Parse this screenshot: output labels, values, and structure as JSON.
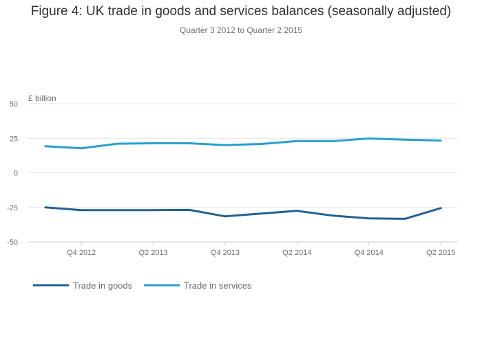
{
  "chart_data": {
    "type": "line",
    "title": "Figure 4: UK trade in goods and services balances (seasonally adjusted)",
    "subtitle": "Quarter 3 2012 to Quarter 2 2015",
    "ylabel": "£ billion",
    "xlabel": "",
    "ylim": [
      -50,
      50
    ],
    "yticks": [
      50,
      25,
      0,
      -25,
      -50
    ],
    "x": [
      "Q3 2012",
      "Q4 2012",
      "Q1 2013",
      "Q2 2013",
      "Q3 2013",
      "Q4 2013",
      "Q1 2014",
      "Q2 2014",
      "Q3 2014",
      "Q4 2014",
      "Q1 2015",
      "Q2 2015"
    ],
    "xtick_labels": [
      "Q4 2012",
      "Q2 2013",
      "Q4 2013",
      "Q2 2014",
      "Q4 2014",
      "Q2 2015"
    ],
    "series": [
      {
        "name": "Trade in goods",
        "color": "#206095",
        "values": [
          -25,
          -27,
          -27,
          -27,
          -26.8,
          -31.5,
          -29.5,
          -27.5,
          -31,
          -33,
          -33.3,
          -25.5
        ]
      },
      {
        "name": "Trade in services",
        "color": "#27a0cc",
        "values": [
          19.3,
          17.8,
          21.1,
          21.4,
          21.4,
          20.1,
          20.9,
          23,
          23,
          24.9,
          24,
          23.4
        ]
      }
    ],
    "grid": true,
    "legend_position": "bottom-left"
  }
}
